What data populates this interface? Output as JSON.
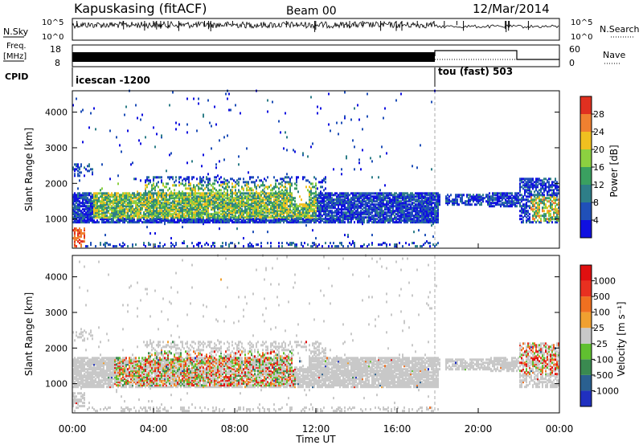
{
  "header": {
    "station": "Kapuskasing (fitACF)",
    "beam": "Beam 00",
    "date": "12/Mar/2014"
  },
  "panels": {
    "noise": {
      "left_label": "N.Sky",
      "right_label": "N.Search",
      "tick_top": "10^5",
      "tick_bottom": "10^0"
    },
    "freq": {
      "left_label_1": "Freq.",
      "left_label_2": "[MHz]",
      "right_label": "Nave",
      "left_tick_top": "18",
      "left_tick_bottom": "8",
      "right_tick_top": "60",
      "right_tick_bottom": "0"
    },
    "cpid": {
      "label": "CPID",
      "mode1": "icescan -1200",
      "mode2": "tou (fast) 503"
    }
  },
  "chart_data": [
    {
      "type": "heatmap",
      "title": "",
      "ylabel": "Slant Range [km]",
      "xlabel": "Time UT",
      "x_ticks": [
        "00:00",
        "04:00",
        "08:00",
        "12:00",
        "16:00",
        "20:00",
        "00:00"
      ],
      "y_ticks": [
        "1000",
        "2000",
        "3000",
        "4000"
      ],
      "ylim": [
        180,
        4600
      ],
      "colorbar": {
        "label": "Power [dB]",
        "ticks": [
          "4",
          "8",
          "12",
          "16",
          "20",
          "24",
          "28"
        ],
        "colors": [
          "#1010e0",
          "#2050b8",
          "#2e7e88",
          "#3aa060",
          "#8cd040",
          "#f0c020",
          "#f08030",
          "#e03020"
        ]
      },
      "mode_change_time": "18:00"
    },
    {
      "type": "heatmap",
      "title": "",
      "ylabel": "Slant Range [km]",
      "xlabel": "Time UT",
      "x_ticks": [
        "00:00",
        "04:00",
        "08:00",
        "12:00",
        "16:00",
        "20:00",
        "00:00"
      ],
      "y_ticks": [
        "1000",
        "2000",
        "3000",
        "4000"
      ],
      "ylim": [
        180,
        4600
      ],
      "colorbar": {
        "label": "Velocity [m s⁻¹]",
        "ticks": [
          "1000",
          "500",
          "100",
          "25",
          "-25",
          "-100",
          "-500",
          "-1000"
        ],
        "colors": [
          "#2030c0",
          "#2a6090",
          "#3a8a50",
          "#60c030",
          "#c8c8c8",
          "#f0a030",
          "#f07020",
          "#e83020",
          "#e01010"
        ]
      },
      "mode_change_time": "18:00"
    }
  ],
  "x_axis_label": "Time UT",
  "x_tick_labels": [
    "00:00",
    "04:00",
    "08:00",
    "12:00",
    "16:00",
    "20:00",
    "00:00"
  ]
}
